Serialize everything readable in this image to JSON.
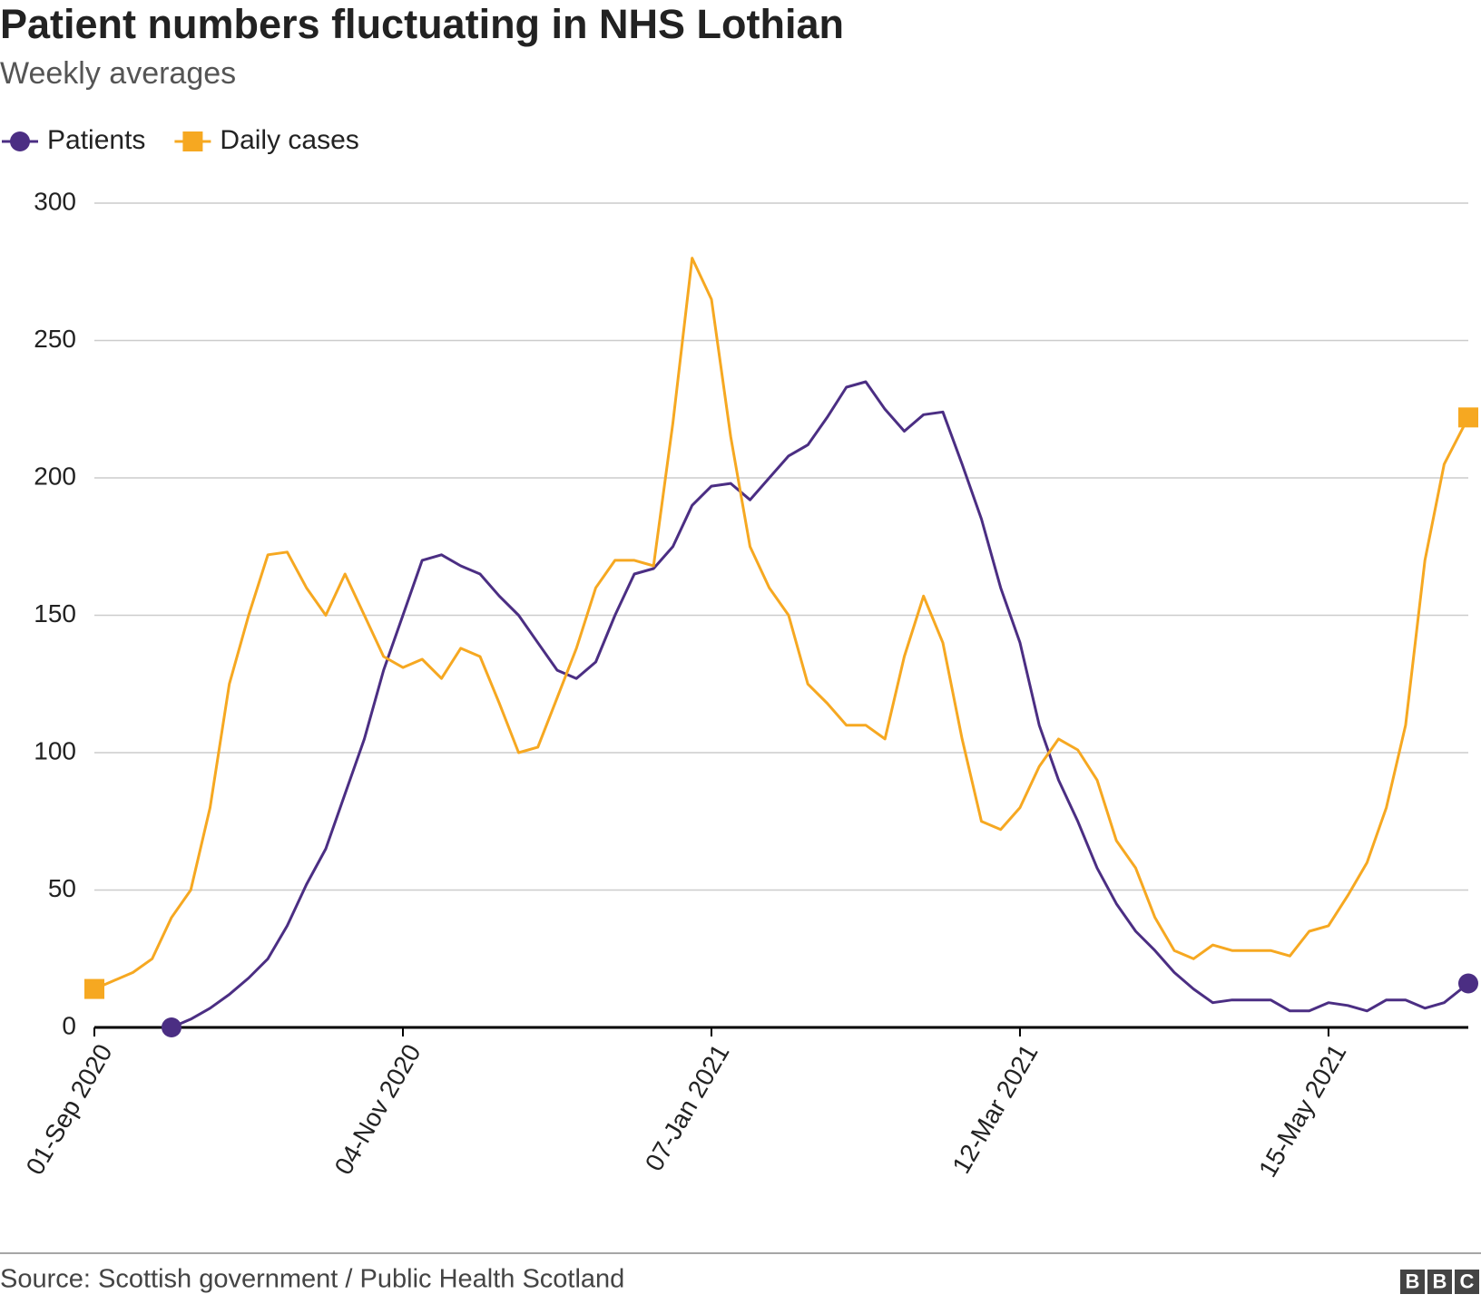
{
  "chart_data": {
    "type": "line",
    "title": "Patient numbers fluctuating in NHS Lothian",
    "subtitle": "Weekly averages",
    "source": "Source: Scottish government / Public Health Scotland",
    "logo": [
      "B",
      "B",
      "C"
    ],
    "x": [
      "2020-09-01",
      "2020-09-05",
      "2020-09-09",
      "2020-09-13",
      "2020-09-17",
      "2020-09-21",
      "2020-09-25",
      "2020-09-29",
      "2020-10-03",
      "2020-10-07",
      "2020-10-11",
      "2020-10-15",
      "2020-10-19",
      "2020-10-23",
      "2020-10-27",
      "2020-10-31",
      "2020-11-04",
      "2020-11-08",
      "2020-11-12",
      "2020-11-16",
      "2020-11-20",
      "2020-11-24",
      "2020-11-28",
      "2020-12-02",
      "2020-12-06",
      "2020-12-10",
      "2020-12-14",
      "2020-12-18",
      "2020-12-22",
      "2020-12-26",
      "2020-12-30",
      "2021-01-03",
      "2021-01-07",
      "2021-01-11",
      "2021-01-15",
      "2021-01-19",
      "2021-01-23",
      "2021-01-27",
      "2021-01-31",
      "2021-02-04",
      "2021-02-08",
      "2021-02-12",
      "2021-02-16",
      "2021-02-20",
      "2021-02-24",
      "2021-02-28",
      "2021-03-04",
      "2021-03-08",
      "2021-03-12",
      "2021-03-16",
      "2021-03-20",
      "2021-03-24",
      "2021-03-28",
      "2021-04-01",
      "2021-04-05",
      "2021-04-09",
      "2021-04-13",
      "2021-04-17",
      "2021-04-21",
      "2021-04-25",
      "2021-04-29",
      "2021-05-03",
      "2021-05-07",
      "2021-05-11",
      "2021-05-15",
      "2021-05-19",
      "2021-05-23",
      "2021-05-27",
      "2021-05-31",
      "2021-06-04",
      "2021-06-08",
      "2021-06-13"
    ],
    "series": [
      {
        "name": "Patients",
        "color": "#4b2e83",
        "marker": "circle",
        "values": [
          null,
          null,
          null,
          null,
          0,
          3,
          7,
          12,
          18,
          25,
          37,
          52,
          65,
          85,
          105,
          130,
          150,
          170,
          172,
          168,
          165,
          157,
          150,
          140,
          130,
          127,
          133,
          150,
          165,
          167,
          175,
          190,
          197,
          198,
          192,
          200,
          208,
          212,
          222,
          233,
          235,
          225,
          217,
          223,
          224,
          205,
          185,
          160,
          140,
          110,
          90,
          75,
          58,
          45,
          35,
          28,
          20,
          14,
          9,
          10,
          10,
          10,
          6,
          6,
          9,
          8,
          6,
          10,
          10,
          7,
          9,
          16
        ]
      },
      {
        "name": "Daily cases",
        "color": "#f6a821",
        "marker": "square",
        "values": [
          14,
          17,
          20,
          25,
          40,
          50,
          80,
          125,
          150,
          172,
          173,
          160,
          150,
          165,
          150,
          135,
          131,
          134,
          127,
          138,
          135,
          118,
          100,
          102,
          120,
          138,
          160,
          170,
          170,
          168,
          220,
          280,
          265,
          215,
          175,
          160,
          150,
          125,
          118,
          110,
          110,
          105,
          135,
          157,
          140,
          105,
          75,
          72,
          80,
          95,
          105,
          101,
          90,
          68,
          58,
          40,
          28,
          25,
          30,
          28,
          28,
          28,
          26,
          35,
          37,
          48,
          60,
          80,
          110,
          170,
          205,
          222
        ]
      }
    ],
    "xlim": [
      "2020-09-01",
      "2021-06-13"
    ],
    "xticks": [
      {
        "value": "2020-09-01",
        "label": "01-Sep 2020"
      },
      {
        "value": "2020-11-04",
        "label": "04-Nov 2020"
      },
      {
        "value": "2021-01-07",
        "label": "07-Jan 2021"
      },
      {
        "value": "2021-03-12",
        "label": "12-Mar 2021"
      },
      {
        "value": "2021-05-15",
        "label": "15-May 2021"
      }
    ],
    "ylim": [
      0,
      300
    ],
    "yticks": [
      0,
      50,
      100,
      150,
      200,
      250,
      300
    ],
    "grid": true
  }
}
